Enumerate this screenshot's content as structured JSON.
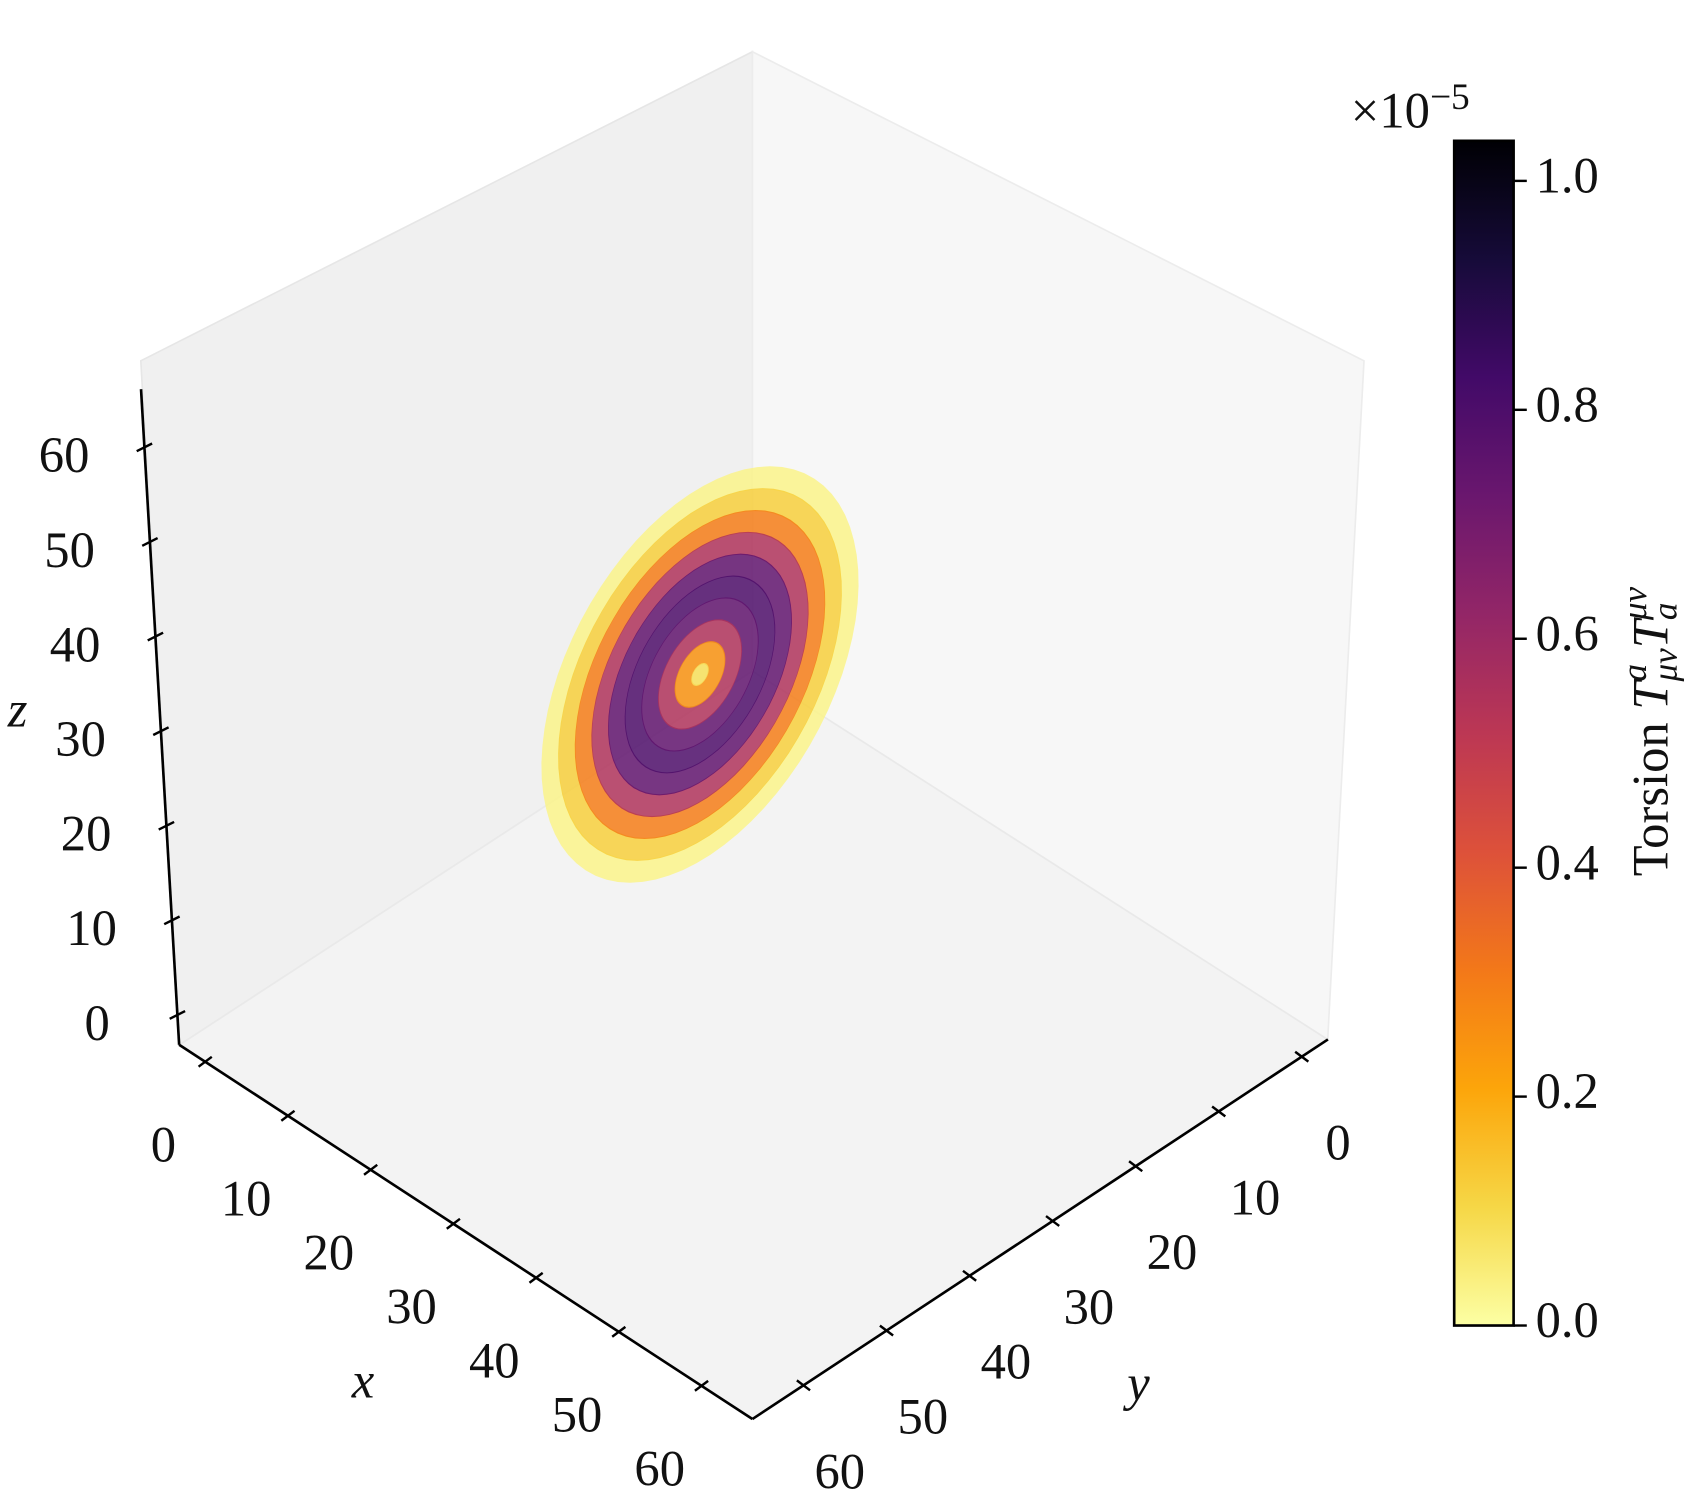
{
  "chart_data": {
    "type": "ring",
    "center": {
      "x": 28,
      "y": 32,
      "z": 34
    },
    "radii": [
      0,
      2,
      4,
      6,
      8,
      10,
      12,
      14,
      16,
      18
    ],
    "values": [
      0.08,
      0.25,
      0.55,
      0.75,
      0.8,
      0.75,
      0.55,
      0.3,
      0.12,
      0.03
    ],
    "xlabel": "x",
    "ylabel": "y",
    "zlabel": "z",
    "xlim": [
      -3.15,
      66.15
    ],
    "ylim": [
      -3.15,
      66.15
    ],
    "zlim": [
      -3.15,
      66.15
    ],
    "xticks": [
      0,
      10,
      20,
      30,
      40,
      50,
      60
    ],
    "yticks": [
      0,
      10,
      20,
      30,
      40,
      50,
      60
    ],
    "zticks": [
      0,
      10,
      20,
      30,
      40,
      50,
      60
    ],
    "colormap": "inferno_r",
    "clim": [
      0,
      1.035
    ],
    "cticks": [
      {
        "value": 0,
        "label": "0.0"
      },
      {
        "value": 0.2,
        "label": "0.2"
      },
      {
        "value": 0.4,
        "label": "0.4"
      },
      {
        "value": 0.6,
        "label": "0.6"
      },
      {
        "value": 0.8,
        "label": "0.8"
      },
      {
        "value": 1,
        "label": "1.0"
      }
    ],
    "colorbar_offset": [
      "×10",
      "−5"
    ],
    "colorbar_label": [
      "Torsion ",
      "T",
      "a",
      "μν",
      "T",
      "a",
      "μν"
    ]
  }
}
